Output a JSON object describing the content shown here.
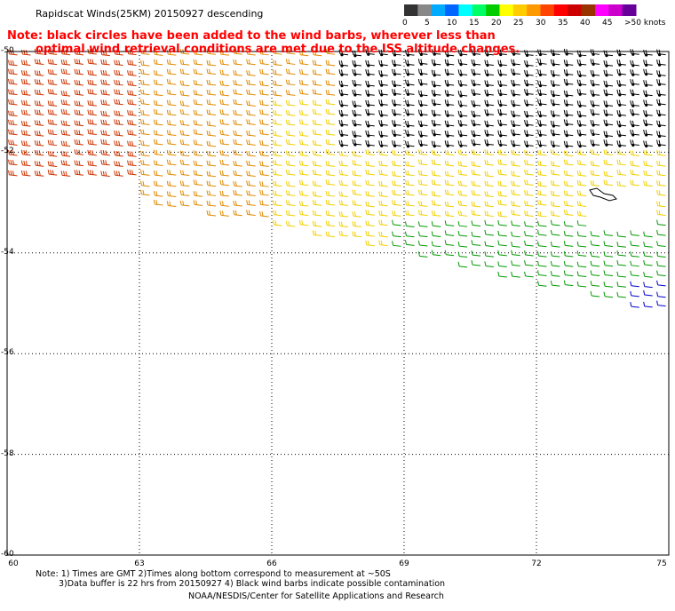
{
  "header": {
    "title": "Rapidscat Winds(25KM) 20150927 descending"
  },
  "note": {
    "line1": "Note: black circles have been added to the wind barbs, wherever less than",
    "line2": "optimal wind retrieval conditions are met due to the ISS altitude changes."
  },
  "footer": {
    "line1": "Note: 1) Times are GMT 2)Times along bottom correspond to measurement at ~50S",
    "line2": "3)Data buffer is 22 hrs from 20150927 4) Black wind barbs indicate possible contamination",
    "line3": "NOAA/NESDIS/Center for Satellite Applications and Research"
  },
  "legend": {
    "labels": [
      "0",
      "5",
      "10",
      "15",
      "20",
      "25",
      "30",
      "35",
      "40",
      "45",
      ">50 knots"
    ],
    "colors": [
      "#333333",
      "#888888",
      "#00aaff",
      "#0066ff",
      "#00ffff",
      "#00ff66",
      "#00cc00",
      "#ffff00",
      "#ffcc00",
      "#ff9900",
      "#ff4400",
      "#ff0000",
      "#cc0000",
      "#993300",
      "#ff00ff",
      "#cc00cc",
      "#660099"
    ]
  },
  "chart_data": {
    "type": "scatter",
    "title": "Rapidscat Winds(25KM) 20150927 descending",
    "x_ticks": [
      "60",
      "63",
      "66",
      "69",
      "72",
      "75"
    ],
    "y_ticks": [
      "-50",
      "-52",
      "-54",
      "-56",
      "-58",
      "-60"
    ],
    "xlim": [
      60,
      75
    ],
    "ylim": [
      -60,
      -50
    ],
    "grid": true,
    "regions": [
      {
        "name": "red/orange barbs",
        "lon_range": [
          60,
          66
        ],
        "lat_range": [
          -52.5,
          -50
        ],
        "speed_knots": 32,
        "color": "#cc3300"
      },
      {
        "name": "orange barbs",
        "lon_range": [
          63,
          69
        ],
        "lat_range": [
          -53.5,
          -50
        ],
        "speed_knots": 27,
        "color": "#e08a00"
      },
      {
        "name": "yellow barbs",
        "lon_range": [
          66,
          75
        ],
        "lat_range": [
          -54.5,
          -51
        ],
        "speed_knots": 22,
        "color": "#f2d000"
      },
      {
        "name": "black barbs (contamination)",
        "lon_range": [
          67.5,
          75
        ],
        "lat_range": [
          -52,
          -50
        ],
        "speed_knots": 20,
        "color": "#000000"
      },
      {
        "name": "green barbs",
        "lon_range": [
          68.5,
          75
        ],
        "lat_range": [
          -55.2,
          -53.3
        ],
        "speed_knots": 15,
        "color": "#009900"
      },
      {
        "name": "blue barbs",
        "lon_range": [
          74,
          75
        ],
        "lat_range": [
          -55.3,
          -54.5
        ],
        "speed_knots": 10,
        "color": "#0000cc"
      }
    ]
  }
}
